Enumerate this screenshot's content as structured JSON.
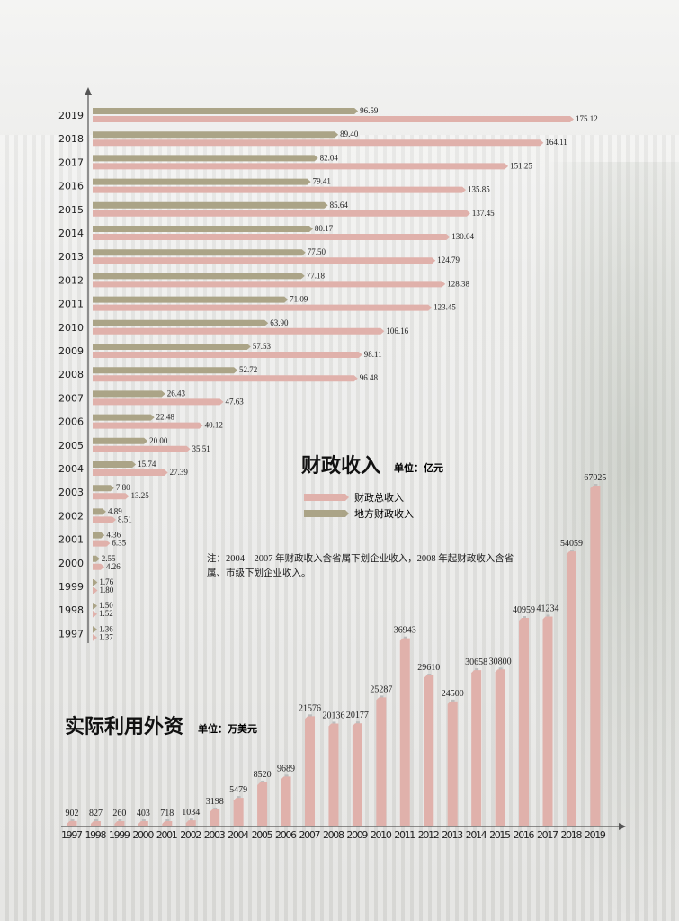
{
  "chart_data": [
    {
      "type": "bar",
      "orientation": "horizontal",
      "title": "财政收入",
      "unit": "单位：亿元",
      "categories": [
        "2019",
        "2018",
        "2017",
        "2016",
        "2015",
        "2014",
        "2013",
        "2012",
        "2011",
        "2010",
        "2009",
        "2008",
        "2007",
        "2006",
        "2005",
        "2004",
        "2003",
        "2002",
        "2001",
        "2000",
        "1999",
        "1998",
        "1997"
      ],
      "series": [
        {
          "name": "地方财政收入",
          "color": "#aba487",
          "values": [
            96.59,
            89.4,
            82.04,
            79.41,
            85.64,
            80.17,
            77.5,
            77.18,
            71.09,
            63.9,
            57.53,
            52.72,
            26.43,
            22.48,
            20.0,
            15.74,
            7.8,
            4.89,
            4.36,
            2.55,
            1.76,
            1.5,
            1.36
          ],
          "labels": [
            "96.59",
            "89.40",
            "82.04",
            "79.41",
            "85.64",
            "80.17",
            "77.50",
            "77.18",
            "71.09",
            "63.90",
            "57.53",
            "52.72",
            "26.43",
            "22.48",
            "20.00",
            "15.74",
            "7.80",
            "4.89",
            "4.36",
            "2.55",
            "1.76",
            "1.50",
            "1.36"
          ]
        },
        {
          "name": "财政总收入",
          "color": "#e0b1ab",
          "values": [
            175.12,
            164.11,
            151.25,
            135.85,
            137.45,
            130.04,
            124.79,
            128.38,
            123.45,
            106.16,
            98.11,
            96.48,
            47.63,
            40.12,
            35.51,
            27.39,
            13.25,
            8.51,
            6.35,
            4.26,
            1.8,
            1.52,
            1.37
          ],
          "labels": [
            "175.12",
            "164.11",
            "151.25",
            "135.85",
            "137.45",
            "130.04",
            "124.79",
            "128.38",
            "123.45",
            "106.16",
            "98.11",
            "96.48",
            "47.63",
            "40.12",
            "35.51",
            "27.39",
            "13.25",
            "8.51",
            "6.35",
            "4.26",
            "1.80",
            "1.52",
            "1.37"
          ]
        }
      ],
      "legend": "center-right",
      "note": "注：2004—2007 年财政收入含省属下划企业收入，2008 年起财政收入含省属、市级下划企业收入。"
    },
    {
      "type": "bar",
      "orientation": "vertical",
      "title": "实际利用外资",
      "unit": "单位：万美元",
      "categories": [
        "1997",
        "1998",
        "1999",
        "2000",
        "2001",
        "2002",
        "2003",
        "2004",
        "2005",
        "2006",
        "2007",
        "2008",
        "2009",
        "2010",
        "2011",
        "2012",
        "2013",
        "2014",
        "2015",
        "2016",
        "2017",
        "2018",
        "2019"
      ],
      "values": [
        902,
        827,
        260,
        403,
        718,
        1034,
        3198,
        5479,
        8520,
        9689,
        21576,
        20136,
        20177,
        25287,
        36943,
        29610,
        24500,
        30658,
        30800,
        40959,
        41234,
        54059,
        67025
      ],
      "labels": [
        "902",
        "827",
        "260",
        "403",
        "718",
        "1034",
        "3198",
        "5479",
        "8520",
        "9689",
        "21576",
        "20136",
        "20177",
        "25287",
        "36943",
        "29610",
        "24500",
        "30658",
        "30800",
        "40959",
        "41234",
        "54059",
        "67025"
      ],
      "color": "#e0b1ab"
    }
  ]
}
